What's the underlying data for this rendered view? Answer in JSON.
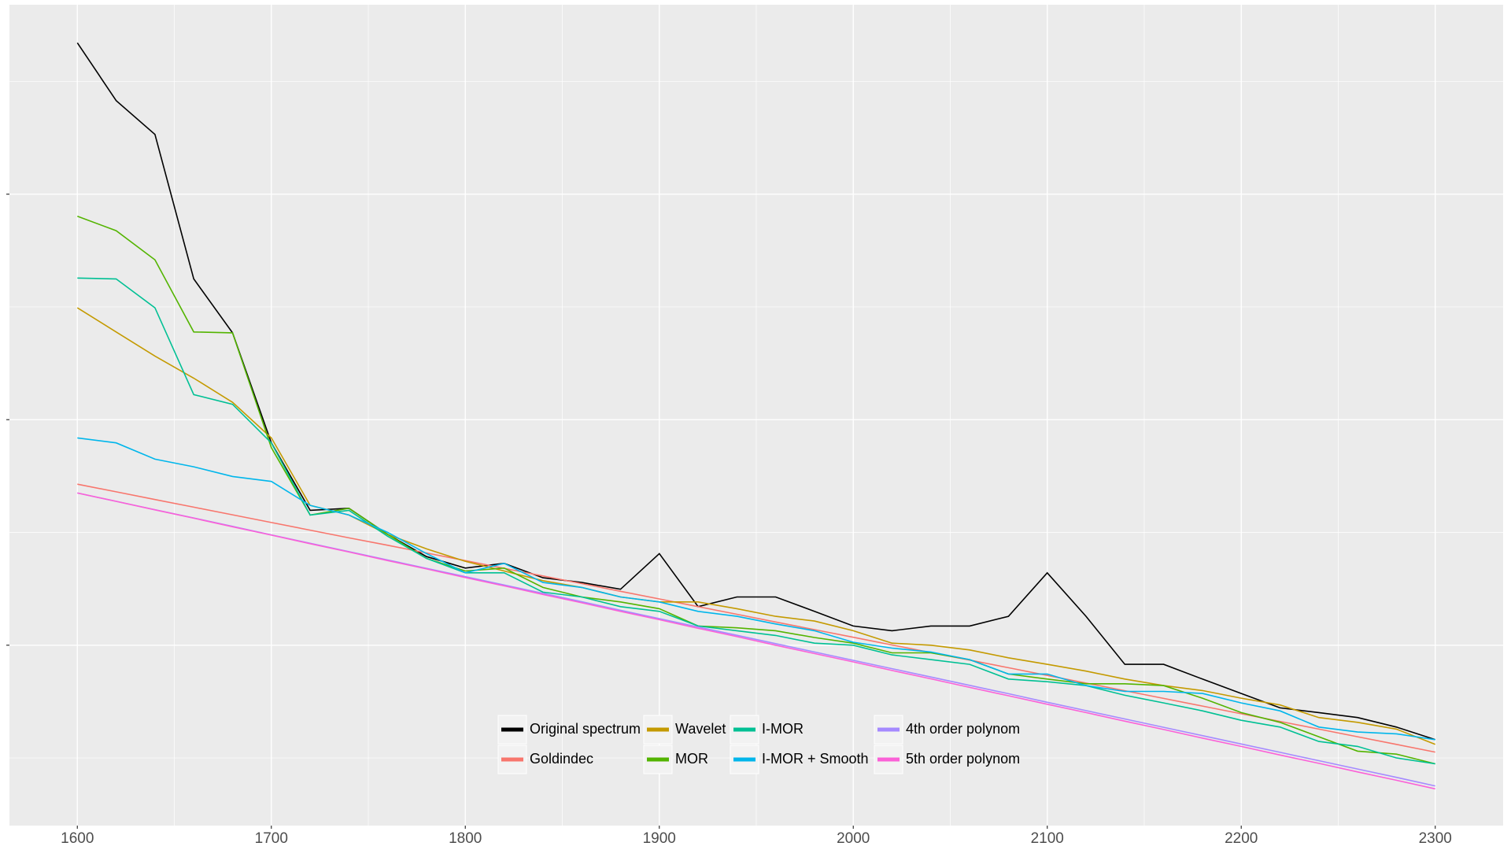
{
  "chart_data": {
    "type": "line",
    "x": [
      1600,
      1620,
      1640,
      1660,
      1680,
      1700,
      1720,
      1740,
      1760,
      1780,
      1800,
      1820,
      1840,
      1860,
      1880,
      1900,
      1920,
      1940,
      1960,
      1980,
      2000,
      2020,
      2040,
      2060,
      2080,
      2100,
      2120,
      2140,
      2160,
      2180,
      2200,
      2220,
      2240,
      2260,
      2280,
      2300
    ],
    "xlim": [
      1565,
      2335
    ],
    "xticks": [
      1600,
      1700,
      1800,
      1900,
      2000,
      2100,
      2200,
      2300
    ],
    "ylim": [
      0.2,
      3.84
    ],
    "yticks": [
      1,
      2,
      3
    ],
    "grid": true,
    "legend_position": "bottom",
    "series": [
      {
        "name": "Original spectrum",
        "color": "#000000",
        "values": [
          3.671,
          3.415,
          3.265,
          2.624,
          2.385,
          1.897,
          1.598,
          1.607,
          1.491,
          1.393,
          1.342,
          1.363,
          1.299,
          1.278,
          1.248,
          1.406,
          1.171,
          1.214,
          1.214,
          1.15,
          1.085,
          1.064,
          1.085,
          1.085,
          1.128,
          1.321,
          1.128,
          0.915,
          0.915,
          0.85,
          0.786,
          0.722,
          0.701,
          0.679,
          0.637,
          0.581
        ]
      },
      {
        "name": "Goldindec",
        "color": "#F8766D",
        "values": [
          1.714,
          1.68,
          1.646,
          1.612,
          1.578,
          1.544,
          1.51,
          1.476,
          1.443,
          1.409,
          1.375,
          1.341,
          1.307,
          1.273,
          1.239,
          1.205,
          1.171,
          1.137,
          1.103,
          1.069,
          1.035,
          1.001,
          0.967,
          0.934,
          0.9,
          0.866,
          0.832,
          0.798,
          0.764,
          0.73,
          0.696,
          0.662,
          0.628,
          0.594,
          0.56,
          0.526
        ]
      },
      {
        "name": "Wavelet",
        "color": "#C49A00",
        "values": [
          2.496,
          2.389,
          2.282,
          2.184,
          2.077,
          1.919,
          1.62,
          1.577,
          1.491,
          1.427,
          1.372,
          1.329,
          1.286,
          1.256,
          1.214,
          1.192,
          1.192,
          1.162,
          1.128,
          1.107,
          1.064,
          1.009,
          1.0,
          0.979,
          0.944,
          0.915,
          0.885,
          0.85,
          0.821,
          0.799,
          0.765,
          0.735,
          0.679,
          0.658,
          0.628,
          0.56
        ]
      },
      {
        "name": "MOR",
        "color": "#53B400",
        "values": [
          2.902,
          2.838,
          2.709,
          2.389,
          2.385,
          1.876,
          1.577,
          1.607,
          1.491,
          1.385,
          1.329,
          1.342,
          1.256,
          1.214,
          1.192,
          1.162,
          1.085,
          1.077,
          1.064,
          1.034,
          1.009,
          0.966,
          0.966,
          0.936,
          0.872,
          0.85,
          0.829,
          0.829,
          0.821,
          0.765,
          0.701,
          0.658,
          0.594,
          0.53,
          0.517,
          0.474
        ]
      },
      {
        "name": "I-MOR",
        "color": "#00C094",
        "values": [
          2.628,
          2.624,
          2.496,
          2.111,
          2.068,
          1.897,
          1.577,
          1.598,
          1.483,
          1.385,
          1.321,
          1.321,
          1.235,
          1.214,
          1.171,
          1.15,
          1.085,
          1.064,
          1.043,
          1.009,
          1.0,
          0.957,
          0.936,
          0.915,
          0.85,
          0.838,
          0.821,
          0.778,
          0.744,
          0.709,
          0.667,
          0.637,
          0.573,
          0.551,
          0.5,
          0.474
        ]
      },
      {
        "name": "I-MOR + Smooth",
        "color": "#00B6EB",
        "values": [
          1.919,
          1.897,
          1.825,
          1.791,
          1.748,
          1.726,
          1.62,
          1.577,
          1.5,
          1.406,
          1.321,
          1.363,
          1.278,
          1.256,
          1.214,
          1.192,
          1.15,
          1.128,
          1.094,
          1.064,
          1.013,
          0.987,
          0.97,
          0.936,
          0.872,
          0.872,
          0.821,
          0.795,
          0.795,
          0.786,
          0.744,
          0.709,
          0.637,
          0.615,
          0.607,
          0.581
        ]
      },
      {
        "name": "4th order polynom",
        "color": "#A58AFF",
        "values": [
          1.675,
          1.638,
          1.601,
          1.564,
          1.527,
          1.489,
          1.452,
          1.415,
          1.378,
          1.341,
          1.304,
          1.267,
          1.23,
          1.193,
          1.155,
          1.118,
          1.081,
          1.044,
          1.007,
          0.97,
          0.933,
          0.896,
          0.859,
          0.822,
          0.785,
          0.747,
          0.71,
          0.673,
          0.636,
          0.599,
          0.562,
          0.525,
          0.488,
          0.451,
          0.414,
          0.376
        ]
      },
      {
        "name": "5th order polynom",
        "color": "#FB61D7",
        "values": [
          1.675,
          1.638,
          1.6,
          1.563,
          1.525,
          1.488,
          1.45,
          1.413,
          1.375,
          1.338,
          1.3,
          1.263,
          1.225,
          1.188,
          1.15,
          1.113,
          1.075,
          1.038,
          1.0,
          0.963,
          0.926,
          0.888,
          0.851,
          0.813,
          0.776,
          0.738,
          0.701,
          0.663,
          0.626,
          0.588,
          0.551,
          0.513,
          0.476,
          0.438,
          0.401,
          0.363
        ]
      }
    ]
  }
}
